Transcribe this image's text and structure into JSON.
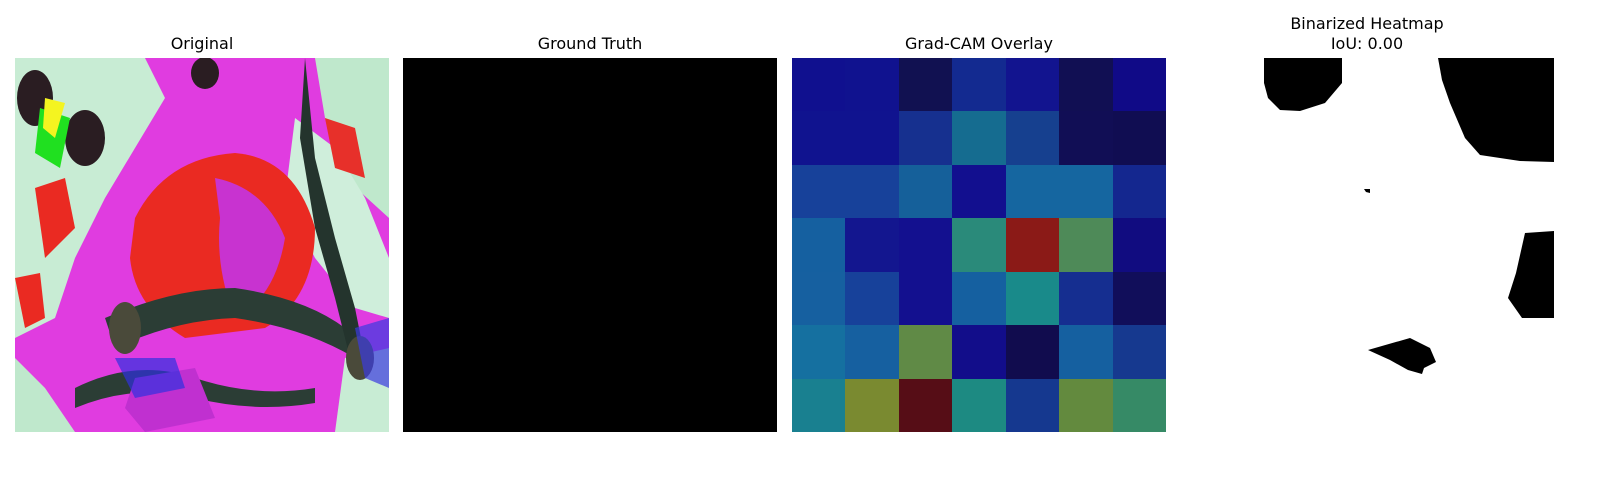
{
  "panels": {
    "original": {
      "title": "Original"
    },
    "ground_truth": {
      "title": "Ground Truth"
    },
    "gradcam": {
      "title": "Grad-CAM Overlay"
    },
    "binarized": {
      "title": "Binarized Heatmap",
      "subtitle": "IoU: 0.00"
    }
  },
  "colors": {
    "background": "#ffffff",
    "ground_truth_fill": "#000000",
    "binarized_background": "#ffffff",
    "binarized_blobs": "#000000"
  },
  "gradcam_grid": [
    [
      "#10108f",
      "#10128f",
      "#111151",
      "#132a90",
      "#12148f",
      "#110f53",
      "#100a87"
    ],
    [
      "#10138f",
      "#10138f",
      "#16308f",
      "#156c90",
      "#16408f",
      "#110e55",
      "#100d52"
    ],
    [
      "#17419a",
      "#17419a",
      "#15609a",
      "#120f8f",
      "#1566a0",
      "#1566a0",
      "#14278f"
    ],
    [
      "#1560a0",
      "#13168f",
      "#13108f",
      "#2a8a7a",
      "#8b1a17",
      "#4e8a58",
      "#110c80"
    ],
    [
      "#1660a0",
      "#17419a",
      "#13108f",
      "#1560a0",
      "#198a8a",
      "#152e90",
      "#110e5a"
    ],
    [
      "#1570a0",
      "#1660a0",
      "#608a46",
      "#120d8a",
      "#110c4e",
      "#1560a0",
      "#16398f"
    ],
    [
      "#198090",
      "#7a8a30",
      "#560d16",
      "#1d8a82",
      "#15388f",
      "#638a3e",
      "#368a66"
    ]
  ]
}
